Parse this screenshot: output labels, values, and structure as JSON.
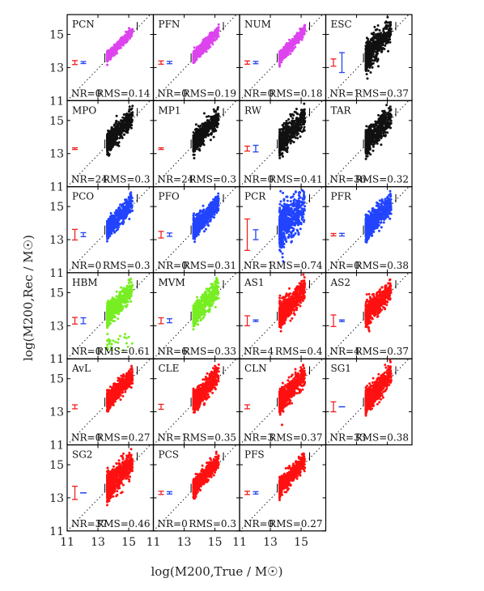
{
  "figure": {
    "xlabel": "log(M200,True / M☉)",
    "ylabel": "log(M200,Rec / M☉)"
  },
  "colors": {
    "magenta": "#dd44ee",
    "black": "#111111",
    "blue": "#2244ff",
    "green": "#77ee22",
    "red": "#ff1111",
    "errRed": "#ee2222",
    "errBlue": "#2244ee"
  },
  "chart_data": {
    "type": "scatter",
    "grid": false,
    "x_ticks": [
      "11",
      "13",
      "15"
    ],
    "y_ticks": [
      "11",
      "13",
      "15"
    ],
    "xlim": [
      11,
      16.6
    ],
    "ylim": [
      11,
      16.2
    ],
    "panels": [
      {
        "name": "PCN",
        "nr": "NR=0",
        "rms": "RMS=0.14",
        "color": "magenta",
        "scatter": 0.14,
        "redErr": 0.12,
        "blueErr": 0.06
      },
      {
        "name": "PFN",
        "nr": "NR=0",
        "rms": "RMS=0.19",
        "color": "magenta",
        "scatter": 0.19,
        "redErr": 0.1,
        "blueErr": 0.07
      },
      {
        "name": "NUM",
        "nr": "NR=0",
        "rms": "RMS=0.18",
        "color": "magenta",
        "scatter": 0.18,
        "redErr": 0.1,
        "blueErr": 0.07
      },
      {
        "name": "ESC",
        "nr": "NR=1",
        "rms": "RMS=0.37",
        "color": "black",
        "scatter": 0.45,
        "redErr": 0.22,
        "blueErr": 0.6
      },
      {
        "name": "MPO",
        "nr": "NR=24",
        "rms": "RMS=0.3",
        "color": "black",
        "scatter": 0.33,
        "redErr": 0.05,
        "blueErr": null
      },
      {
        "name": "MP1",
        "nr": "NR=24",
        "rms": "RMS=0.3",
        "color": "black",
        "scatter": 0.33,
        "redErr": 0.05,
        "blueErr": null
      },
      {
        "name": "RW",
        "nr": "NR=0",
        "rms": "RMS=0.41",
        "color": "black",
        "scatter": 0.4,
        "redErr": 0.15,
        "blueErr": 0.2
      },
      {
        "name": "TAR",
        "nr": "NR=36",
        "rms": "RMS=0.32",
        "color": "black",
        "scatter": 0.4,
        "redErr": null,
        "blueErr": null
      },
      {
        "name": "PCO",
        "nr": "NR=0",
        "rms": "RMS=0.3",
        "color": "blue",
        "scatter": 0.3,
        "redErr": 0.32,
        "blueErr": 0.12
      },
      {
        "name": "PFO",
        "nr": "NR=0",
        "rms": "RMS=0.31",
        "color": "blue",
        "scatter": 0.32,
        "redErr": 0.2,
        "blueErr": 0.1
      },
      {
        "name": "PCR",
        "nr": "NR=1",
        "rms": "RMS=0.74",
        "color": "blue",
        "scatter": 0.7,
        "redErr": 0.95,
        "blueErr": 0.3
      },
      {
        "name": "PFR",
        "nr": "NR=0",
        "rms": "RMS=0.38",
        "color": "blue",
        "scatter": 0.36,
        "redErr": 0.07,
        "blueErr": 0.08
      },
      {
        "name": "HBM",
        "nr": "NR=0",
        "rms": "RMS=0.61",
        "color": "green",
        "scatter": 0.35,
        "redErr": 0.2,
        "blueErr": 0.18
      },
      {
        "name": "MVM",
        "nr": "NR=6",
        "rms": "RMS=0.33",
        "color": "green",
        "scatter": 0.35,
        "redErr": 0.18,
        "blueErr": 0.12
      },
      {
        "name": "AS1",
        "nr": "NR=4",
        "rms": "RMS=0.4",
        "color": "red",
        "scatter": 0.4,
        "redErr": 0.3,
        "blueErr": 0.05
      },
      {
        "name": "AS2",
        "nr": "NR=4",
        "rms": "RMS=0.37",
        "color": "red",
        "scatter": 0.38,
        "redErr": 0.35,
        "blueErr": 0.05
      },
      {
        "name": "AvL",
        "nr": "NR=0",
        "rms": "RMS=0.27",
        "color": "red",
        "scatter": 0.28,
        "redErr": 0.12,
        "blueErr": null
      },
      {
        "name": "CLE",
        "nr": "NR=1",
        "rms": "RMS=0.35",
        "color": "red",
        "scatter": 0.35,
        "redErr": 0.15,
        "blueErr": null
      },
      {
        "name": "CLN",
        "nr": "NR=3",
        "rms": "RMS=0.37",
        "color": "red",
        "scatter": 0.36,
        "redErr": 0.12,
        "blueErr": null
      },
      {
        "name": "SG1",
        "nr": "NR=33",
        "rms": "RMS=0.38",
        "color": "red",
        "scatter": 0.38,
        "redErr": 0.3,
        "blueErr": 0.0
      },
      {
        "name": "SG2",
        "nr": "NR=37",
        "rms": "RMS=0.46",
        "color": "red",
        "scatter": 0.45,
        "redErr": 0.4,
        "blueErr": 0.0
      },
      {
        "name": "PCS",
        "nr": "NR=0",
        "rms": "RMS=0.3",
        "color": "red",
        "scatter": 0.28,
        "redErr": 0.1,
        "blueErr": 0.07
      },
      {
        "name": "PFS",
        "nr": "NR=0",
        "rms": "RMS=0.27",
        "color": "red",
        "scatter": 0.27,
        "redErr": 0.1,
        "blueErr": 0.07
      }
    ]
  }
}
